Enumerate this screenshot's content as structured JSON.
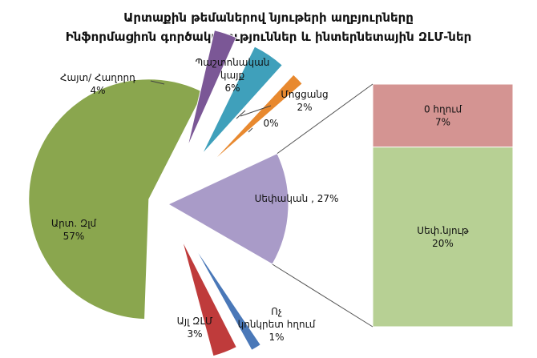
{
  "chart_data": {
    "type": "pie",
    "title": "Արտաքին թեմաներով նյութերի աղբյուրները",
    "subtitle": "Ինֆորմացիոն գործակալություններ և ինտերնետային ԶԼՄ-ներ",
    "slices": [
      {
        "label": "Արտ. Զլմ",
        "value": 57,
        "value_label": "57%",
        "color": "#8aa64e"
      },
      {
        "label": "Սեփական ,",
        "value": 27,
        "value_label": "27%",
        "color": "#a99bc8"
      },
      {
        "label": "Ոչ կոնկրետ հղում",
        "value": 1,
        "value_label": "1%",
        "color": "#4a78b8"
      },
      {
        "label": "Այլ ԶԼՄ",
        "value": 3,
        "value_label": "3%",
        "color": "#bf3b3b"
      },
      {
        "label": "Հայտ/ Հաղորդ",
        "value": 4,
        "value_label": "4%",
        "color": "#7b5796"
      },
      {
        "label": "Պաշտոնական կայք",
        "value": 6,
        "value_label": "6%",
        "color": "#3fa0bb"
      },
      {
        "label": "Մոցցանց",
        "value": 2,
        "value_label": "2%",
        "color": "#e8892f"
      },
      {
        "label": "",
        "value": 0,
        "value_label": "0%",
        "color": "#ffffff"
      }
    ],
    "breakdown": {
      "of_slice": "Սեփական ,",
      "segments": [
        {
          "label": "Սեփ.նյութ",
          "value": 20,
          "value_label": "20%",
          "color": "#b7d094"
        },
        {
          "label": "0 հղում",
          "value": 7,
          "value_label": "7%",
          "color": "#d49492"
        }
      ]
    }
  }
}
